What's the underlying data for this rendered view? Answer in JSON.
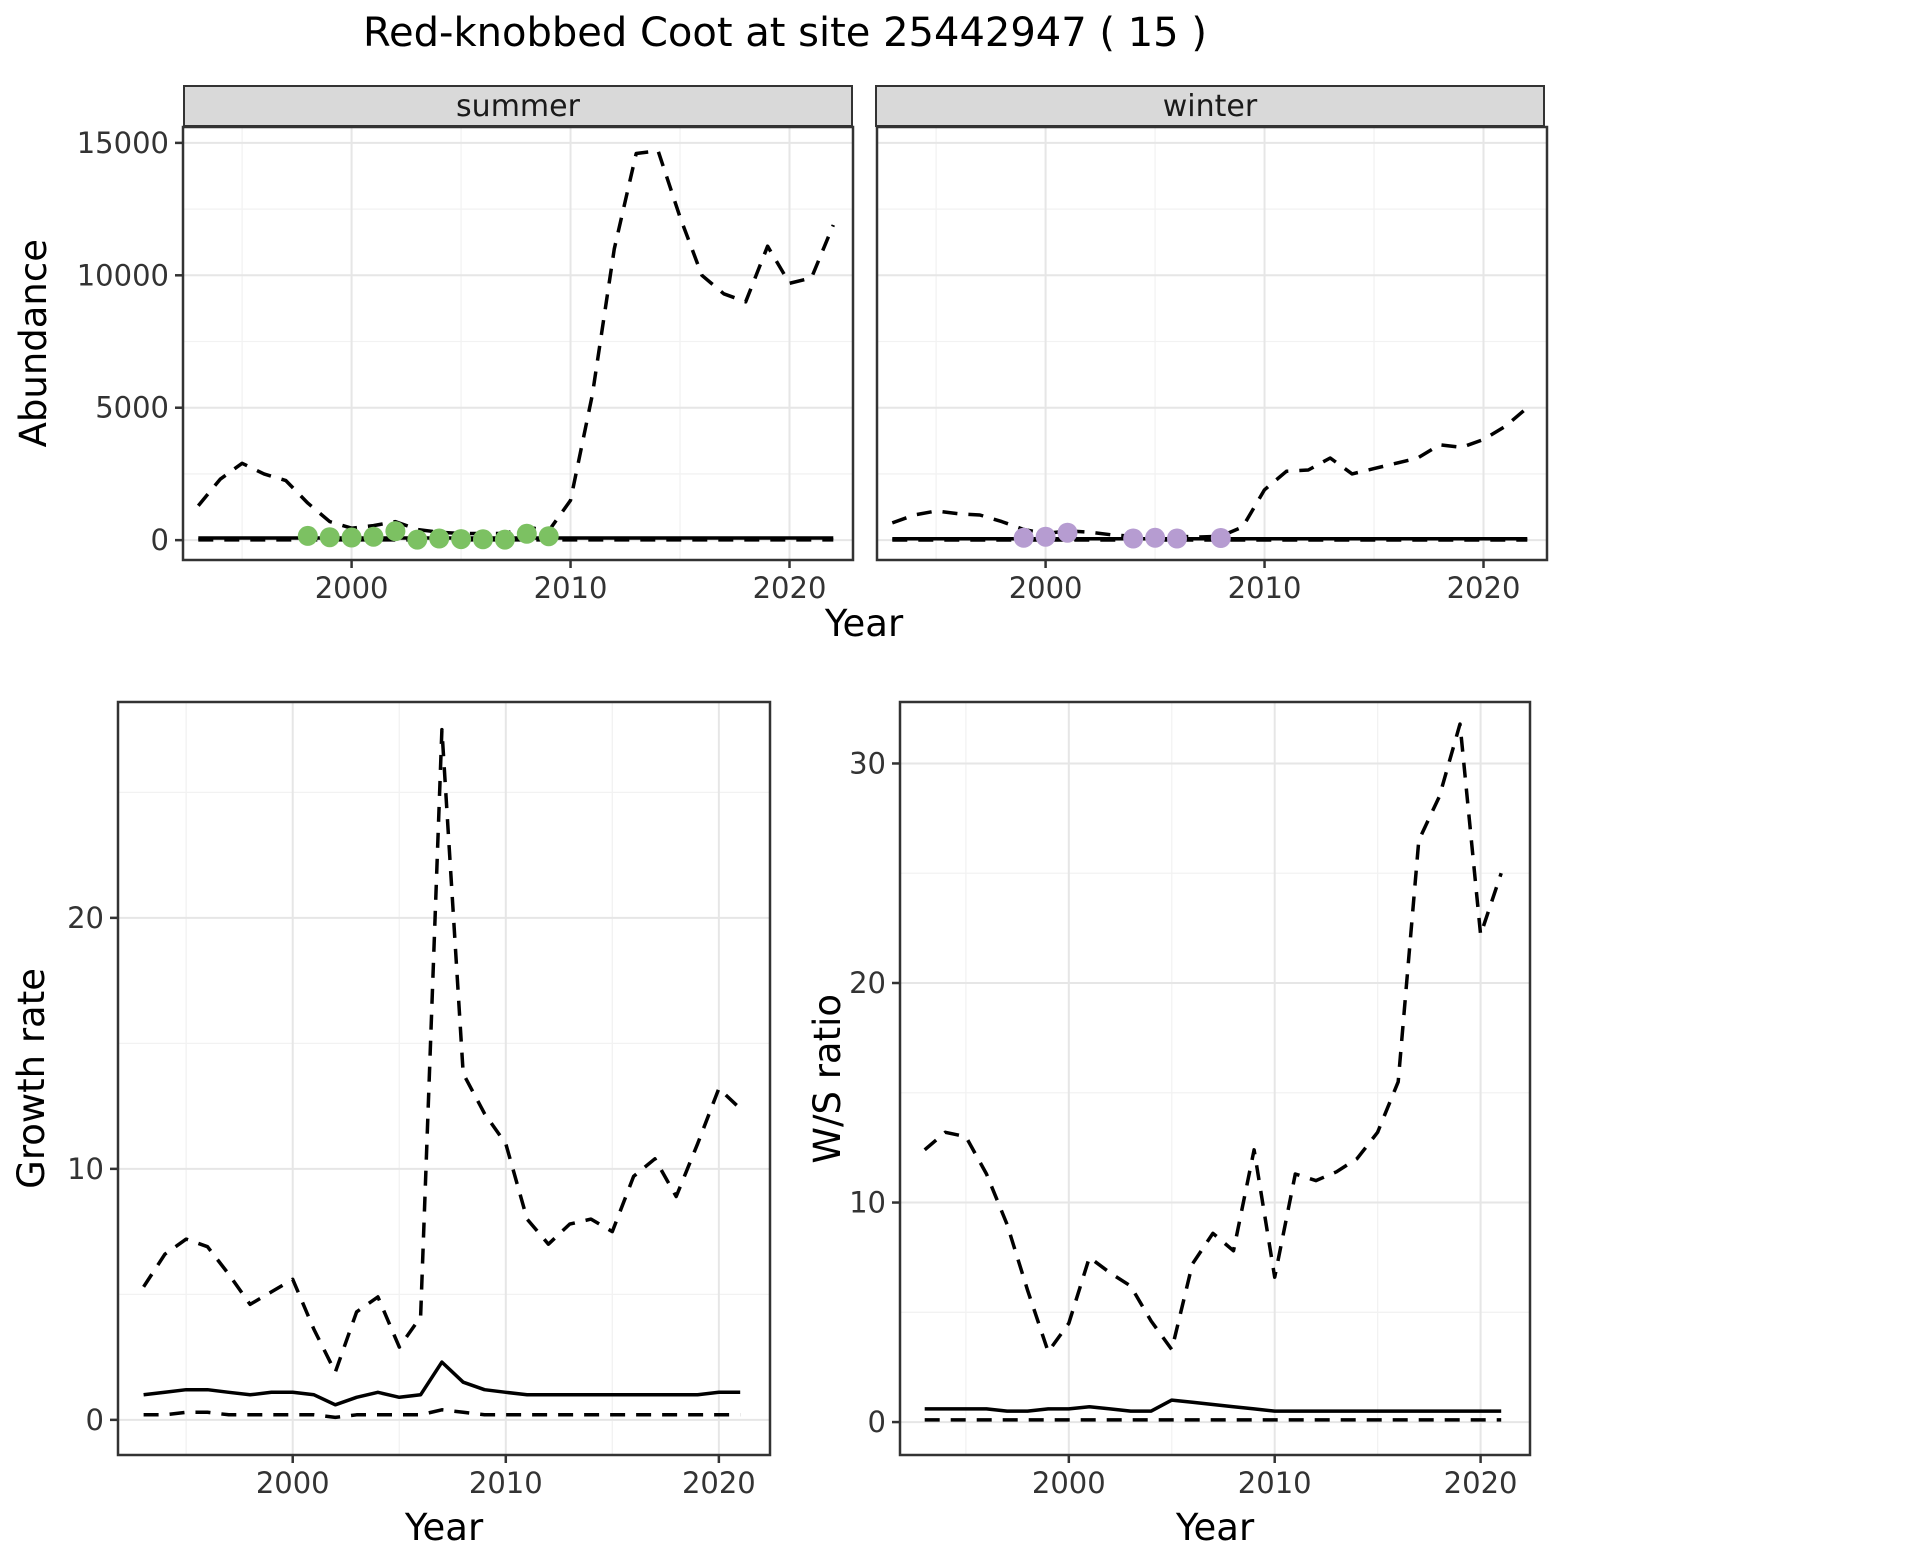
{
  "title": "Red-knobbed Coot at site 25442947 ( 15 )",
  "style": {
    "summer_point_color": "#7cc162",
    "winter_point_color": "#b69cd1",
    "line_color": "#000000",
    "strip_bg": "#d9d9d9",
    "panel_border": "#333333",
    "grid_major": "#e6e6e6",
    "grid_minor": "#f2f2f2",
    "axis_text_color": "#333333"
  },
  "chart_data": [
    {
      "id": "summer",
      "type": "line",
      "facet_label": "summer",
      "ylabel": "Abundance",
      "xlabel": "Year",
      "x_range": [
        1992.3,
        2022.9
      ],
      "y_range": [
        -750,
        15600
      ],
      "x_ticks": [
        2000,
        2010,
        2020
      ],
      "y_ticks": [
        0,
        5000,
        10000,
        15000
      ],
      "x_minor": [
        1995,
        2005,
        2015
      ],
      "y_minor": [
        2500,
        7500,
        12500
      ],
      "show_y_tick_labels": true,
      "x": [
        1993,
        1994,
        1995,
        1996,
        1997,
        1998,
        1999,
        2000,
        2001,
        2002,
        2003,
        2004,
        2005,
        2006,
        2007,
        2008,
        2009,
        2010,
        2011,
        2012,
        2013,
        2014,
        2015,
        2016,
        2017,
        2018,
        2019,
        2020,
        2021,
        2022
      ],
      "series": [
        {
          "name": "upper-ci",
          "line": "dashed",
          "values": [
            1300,
            2300,
            2900,
            2500,
            2250,
            1400,
            700,
            450,
            550,
            700,
            400,
            300,
            250,
            250,
            250,
            500,
            350,
            1500,
            5500,
            11000,
            14600,
            14700,
            12200,
            10000,
            9300,
            9000,
            11100,
            9700,
            9900,
            11900
          ]
        },
        {
          "name": "mean",
          "line": "solid",
          "values": [
            80,
            80,
            80,
            80,
            80,
            80,
            80,
            80,
            80,
            80,
            80,
            80,
            80,
            80,
            80,
            80,
            80,
            80,
            80,
            80,
            80,
            80,
            80,
            80,
            80,
            80,
            80,
            80,
            80,
            80
          ]
        },
        {
          "name": "lower-ci",
          "line": "dashed",
          "values": [
            10,
            10,
            10,
            10,
            10,
            10,
            10,
            10,
            10,
            10,
            10,
            10,
            10,
            10,
            10,
            10,
            10,
            10,
            10,
            10,
            10,
            10,
            10,
            10,
            10,
            10,
            10,
            10,
            10,
            10
          ]
        }
      ],
      "points": {
        "name": "observed-summer-counts",
        "color_key": "summer_point_color",
        "x": [
          1998,
          1999,
          2000,
          2001,
          2002,
          2003,
          2004,
          2005,
          2006,
          2007,
          2008,
          2009
        ],
        "y": [
          160,
          110,
          100,
          130,
          340,
          20,
          60,
          40,
          30,
          20,
          240,
          150
        ]
      }
    },
    {
      "id": "winter",
      "type": "line",
      "facet_label": "winter",
      "ylabel": "Abundance",
      "xlabel": "Year",
      "x_range": [
        1992.3,
        2022.9
      ],
      "y_range": [
        -750,
        15600
      ],
      "x_ticks": [
        2000,
        2010,
        2020
      ],
      "y_ticks": [
        0,
        5000,
        10000,
        15000
      ],
      "x_minor": [
        1995,
        2005,
        2015
      ],
      "y_minor": [
        2500,
        7500,
        12500
      ],
      "show_y_tick_labels": false,
      "x": [
        1993,
        1994,
        1995,
        1996,
        1997,
        1998,
        1999,
        2000,
        2001,
        2002,
        2003,
        2004,
        2005,
        2006,
        2007,
        2008,
        2009,
        2010,
        2011,
        2012,
        2013,
        2014,
        2015,
        2016,
        2017,
        2018,
        2019,
        2020,
        2021,
        2022
      ],
      "series": [
        {
          "name": "upper-ci",
          "line": "dashed",
          "values": [
            650,
            950,
            1100,
            1000,
            950,
            700,
            400,
            250,
            350,
            300,
            200,
            150,
            150,
            150,
            120,
            150,
            500,
            1900,
            2600,
            2650,
            3100,
            2500,
            2700,
            2900,
            3100,
            3600,
            3500,
            3800,
            4300,
            5000
          ]
        },
        {
          "name": "mean",
          "line": "solid",
          "values": [
            50,
            50,
            50,
            50,
            50,
            50,
            50,
            50,
            50,
            50,
            50,
            50,
            50,
            50,
            50,
            50,
            50,
            50,
            50,
            50,
            50,
            50,
            50,
            50,
            50,
            50,
            50,
            50,
            50,
            50
          ]
        },
        {
          "name": "lower-ci",
          "line": "dashed",
          "values": [
            5,
            5,
            5,
            5,
            5,
            5,
            5,
            5,
            5,
            5,
            5,
            5,
            5,
            5,
            5,
            5,
            5,
            5,
            5,
            5,
            5,
            5,
            5,
            5,
            5,
            5,
            5,
            5,
            5,
            5
          ]
        }
      ],
      "points": {
        "name": "observed-winter-counts",
        "color_key": "winter_point_color",
        "x": [
          1999,
          2000,
          2001,
          2004,
          2005,
          2006,
          2008
        ],
        "y": [
          90,
          130,
          280,
          60,
          90,
          60,
          80
        ]
      }
    },
    {
      "id": "growth",
      "type": "line",
      "facet_label": "",
      "ylabel": "Growth rate",
      "xlabel": "Year",
      "x_range": [
        1991.8,
        2022.4
      ],
      "y_range": [
        -1.4,
        28.6
      ],
      "x_ticks": [
        2000,
        2010,
        2020
      ],
      "y_ticks": [
        0,
        10,
        20
      ],
      "x_minor": [
        1995,
        2005,
        2015
      ],
      "y_minor": [
        5,
        15,
        25
      ],
      "show_y_tick_labels": true,
      "x": [
        1993,
        1994,
        1995,
        1996,
        1997,
        1998,
        1999,
        2000,
        2001,
        2002,
        2003,
        2004,
        2005,
        2006,
        2007,
        2008,
        2009,
        2010,
        2011,
        2012,
        2013,
        2014,
        2015,
        2016,
        2017,
        2018,
        2019,
        2020,
        2021
      ],
      "series": [
        {
          "name": "upper-ci",
          "line": "dashed",
          "values": [
            5.3,
            6.6,
            7.2,
            6.9,
            5.8,
            4.6,
            5.1,
            5.6,
            3.6,
            1.9,
            4.3,
            4.9,
            2.9,
            4.1,
            27.5,
            13.8,
            12.2,
            11.0,
            8.0,
            7.0,
            7.8,
            8.0,
            7.5,
            9.7,
            10.4,
            8.9,
            11.0,
            13.2,
            12.4
          ]
        },
        {
          "name": "mean",
          "line": "solid",
          "values": [
            1.0,
            1.1,
            1.2,
            1.2,
            1.1,
            1.0,
            1.1,
            1.1,
            1.0,
            0.6,
            0.9,
            1.1,
            0.9,
            1.0,
            2.3,
            1.5,
            1.2,
            1.1,
            1.0,
            1.0,
            1.0,
            1.0,
            1.0,
            1.0,
            1.0,
            1.0,
            1.0,
            1.1,
            1.1
          ]
        },
        {
          "name": "lower-ci",
          "line": "dashed",
          "values": [
            0.2,
            0.2,
            0.3,
            0.3,
            0.2,
            0.2,
            0.2,
            0.2,
            0.2,
            0.1,
            0.2,
            0.2,
            0.2,
            0.2,
            0.4,
            0.3,
            0.2,
            0.2,
            0.2,
            0.2,
            0.2,
            0.2,
            0.2,
            0.2,
            0.2,
            0.2,
            0.2,
            0.2,
            0.2
          ]
        }
      ],
      "points": null
    },
    {
      "id": "ws",
      "type": "line",
      "facet_label": "",
      "ylabel": "W/S ratio",
      "xlabel": "Year",
      "x_range": [
        1991.8,
        2022.4
      ],
      "y_range": [
        -1.5,
        32.8
      ],
      "x_ticks": [
        2000,
        2010,
        2020
      ],
      "y_ticks": [
        0,
        10,
        20,
        30
      ],
      "x_minor": [
        1995,
        2005,
        2015
      ],
      "y_minor": [
        5,
        15,
        25
      ],
      "show_y_tick_labels": true,
      "x": [
        1993,
        1994,
        1995,
        1996,
        1997,
        1998,
        1999,
        2000,
        2001,
        2002,
        2003,
        2004,
        2005,
        2006,
        2007,
        2008,
        2009,
        2010,
        2011,
        2012,
        2013,
        2014,
        2015,
        2016,
        2017,
        2018,
        2019,
        2020,
        2021
      ],
      "series": [
        {
          "name": "upper-ci",
          "line": "dashed",
          "values": [
            12.4,
            13.2,
            13.0,
            11.3,
            9.0,
            6.0,
            3.2,
            4.5,
            7.5,
            6.8,
            6.2,
            4.6,
            3.3,
            7.2,
            8.6,
            7.8,
            12.4,
            6.6,
            11.3,
            11.0,
            11.4,
            12.0,
            13.2,
            15.5,
            26.5,
            28.5,
            31.8,
            22.2,
            25.0
          ]
        },
        {
          "name": "mean",
          "line": "solid",
          "values": [
            0.6,
            0.6,
            0.6,
            0.6,
            0.5,
            0.5,
            0.6,
            0.6,
            0.7,
            0.6,
            0.5,
            0.5,
            1.0,
            0.9,
            0.8,
            0.7,
            0.6,
            0.5,
            0.5,
            0.5,
            0.5,
            0.5,
            0.5,
            0.5,
            0.5,
            0.5,
            0.5,
            0.5,
            0.5
          ]
        },
        {
          "name": "lower-ci",
          "line": "dashed",
          "values": [
            0.1,
            0.1,
            0.1,
            0.1,
            0.1,
            0.1,
            0.1,
            0.1,
            0.1,
            0.1,
            0.1,
            0.1,
            0.1,
            0.1,
            0.1,
            0.1,
            0.1,
            0.1,
            0.1,
            0.1,
            0.1,
            0.1,
            0.1,
            0.1,
            0.1,
            0.1,
            0.1,
            0.1,
            0.1
          ]
        }
      ],
      "points": null
    }
  ]
}
